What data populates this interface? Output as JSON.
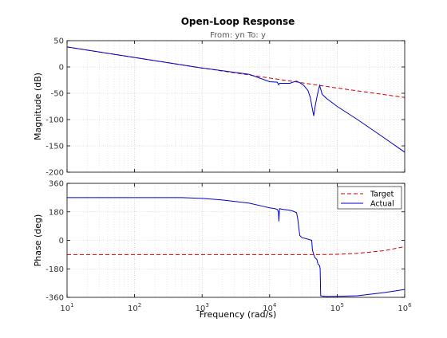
{
  "figure": {
    "title": "Open-Loop Response",
    "subtitle": "From: yn  To: y",
    "xlabel": "Frequency  (rad/s)"
  },
  "legend": {
    "placement": "top-right of phase plot",
    "entries": [
      {
        "name": "Target",
        "color": "#cc0000",
        "style": "dashed"
      },
      {
        "name": "Actual",
        "color": "#0000cc",
        "style": "solid"
      }
    ]
  },
  "chart_data": [
    {
      "type": "line",
      "panel": "magnitude",
      "title": "",
      "xlabel": "Frequency  (rad/s)",
      "ylabel": "Magnitude (dB)",
      "xscale": "log",
      "xlim": [
        10,
        1000000
      ],
      "ylim": [
        -200,
        50
      ],
      "grid": true,
      "x_ticks": [
        "10^1",
        "10^2",
        "10^3",
        "10^4",
        "10^5",
        "10^6"
      ],
      "y_ticks": [
        "50",
        "0",
        "-50",
        "-100",
        "-150",
        "-200"
      ],
      "series": [
        {
          "name": "Target",
          "color": "#cc0000",
          "dash": true,
          "x": [
            10,
            100,
            1000,
            10000,
            100000,
            1000000
          ],
          "y": [
            38,
            18,
            -2,
            -21,
            -40,
            -58
          ]
        },
        {
          "name": "Actual",
          "color": "#0000cc",
          "dash": false,
          "x": [
            10,
            100,
            1000,
            5000,
            10000,
            13000,
            13600,
            14000,
            15000,
            20000,
            22000,
            25000,
            28000,
            32000,
            37000,
            40000,
            43000,
            45000,
            47000,
            50000,
            53000,
            55000,
            57000,
            60000,
            70000,
            100000,
            200000,
            500000,
            1000000
          ],
          "y": [
            38,
            18,
            -2,
            -14,
            -28,
            -29,
            -34,
            -31,
            -31,
            -31,
            -29,
            -27,
            -30,
            -35,
            -45,
            -58,
            -80,
            -93,
            -76,
            -58,
            -43,
            -35,
            -42,
            -52,
            -60,
            -75,
            -100,
            -135,
            -162
          ]
        }
      ]
    },
    {
      "type": "line",
      "panel": "phase",
      "title": "",
      "xlabel": "Frequency  (rad/s)",
      "ylabel": "Phase (deg)",
      "xscale": "log",
      "xlim": [
        10,
        1000000
      ],
      "ylim": [
        -360,
        360
      ],
      "grid": true,
      "x_ticks": [
        "10^1",
        "10^2",
        "10^3",
        "10^4",
        "10^5",
        "10^6"
      ],
      "y_ticks": [
        "360",
        "180",
        "0",
        "-180",
        "-360"
      ],
      "series": [
        {
          "name": "Target",
          "color": "#cc0000",
          "dash": true,
          "x": [
            10,
            1000,
            10000,
            50000,
            100000,
            200000,
            500000,
            1000000
          ],
          "y": [
            -90,
            -90,
            -90,
            -90,
            -88,
            -82,
            -65,
            -40
          ]
        },
        {
          "name": "Actual",
          "color": "#0000cc",
          "dash": false,
          "x": [
            10,
            100,
            500,
            1000,
            2000,
            5000,
            8000,
            10000,
            12000,
            13000,
            13500,
            13700,
            14000,
            16000,
            20000,
            22000,
            25000,
            26000,
            27000,
            28000,
            30000,
            35000,
            42000,
            43000,
            45000,
            47000,
            50000,
            52000,
            55000,
            56000,
            57000,
            60000,
            70000,
            100000,
            200000,
            500000,
            1000000
          ],
          "y": [
            270,
            270,
            270,
            265,
            255,
            235,
            215,
            205,
            200,
            195,
            180,
            120,
            200,
            195,
            190,
            185,
            175,
            140,
            80,
            30,
            18,
            10,
            0,
            -60,
            -90,
            -110,
            -120,
            -150,
            -160,
            -180,
            -350,
            -352,
            -355,
            -354,
            -350,
            -330,
            -310
          ]
        }
      ]
    }
  ]
}
